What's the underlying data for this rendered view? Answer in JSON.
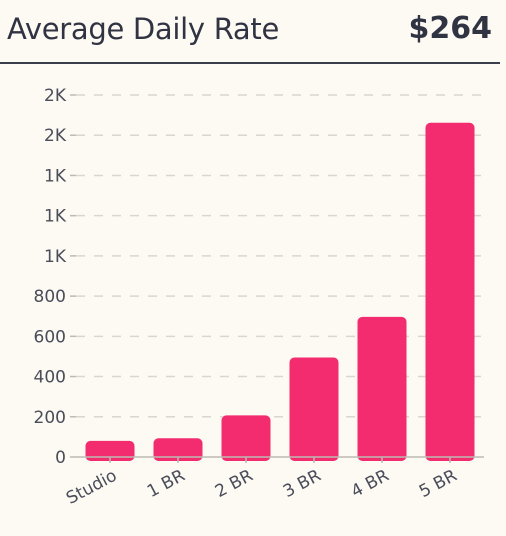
{
  "header": {
    "title": "Average Daily Rate",
    "value": "$264"
  },
  "chart_data": {
    "type": "bar",
    "title": "Average Daily Rate",
    "xlabel": "",
    "ylabel": "",
    "categories": [
      "Studio",
      "1 BR",
      "2 BR",
      "3 BR",
      "4 BR",
      "5 BR"
    ],
    "values": [
      80,
      93,
      207,
      495,
      697,
      1662
    ],
    "ylim": [
      0,
      1800
    ],
    "yticks": [
      0,
      200,
      400,
      600,
      800,
      1000,
      1200,
      1400,
      1600,
      1800
    ],
    "ytick_labels": [
      "0",
      "200",
      "400",
      "600",
      "800",
      "1K",
      "1K",
      "1K",
      "2K",
      "2K"
    ],
    "grid": true,
    "legend": "none",
    "colors": {
      "bar": "#f22c6e",
      "grid": "#d9d6d0",
      "axis": "#bdbab4",
      "text": "#4a4d5a"
    }
  }
}
